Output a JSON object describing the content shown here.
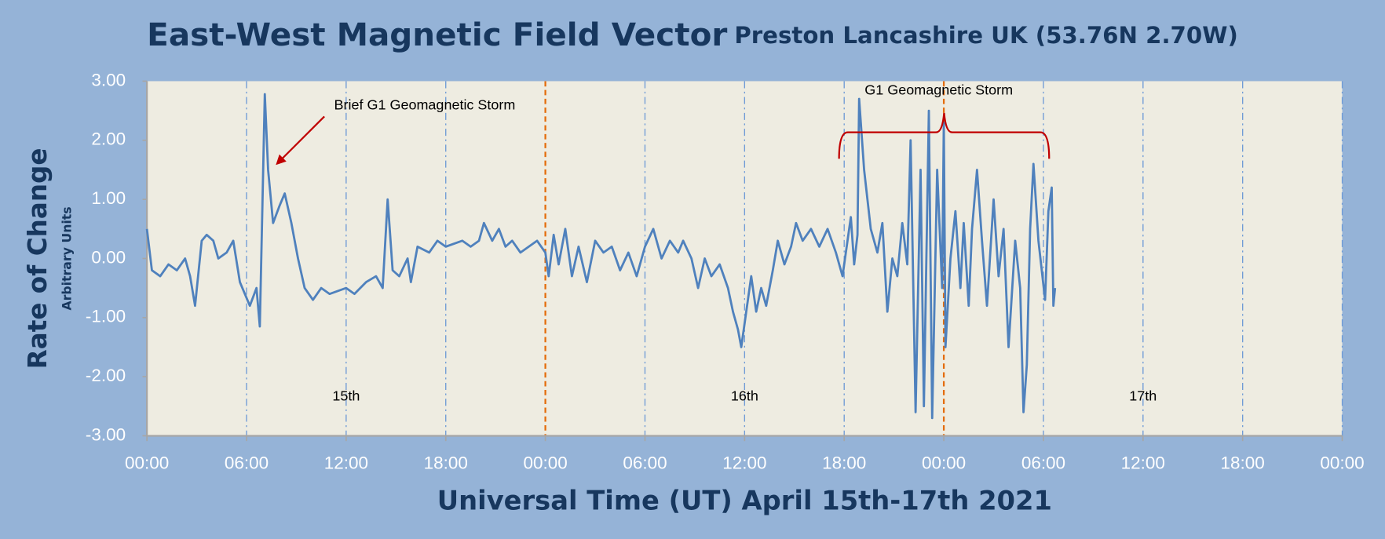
{
  "chart_data": {
    "type": "line",
    "title": "East-West Magnetic Field Vector",
    "subtitle": "Preston Lancashire UK (53.76N 2.70W)",
    "x_label": "Universal Time (UT) April 15th-17th 2021",
    "y_label": "Rate of Change",
    "y_sublabel": "Arbitrary Units",
    "annotations": [
      "Brief G1 Geomagnetic Storm",
      "G1 Geomagnetic Storm"
    ],
    "day_labels": [
      "15th",
      "16th",
      "17th"
    ],
    "color": "#4f81bd",
    "xlim": [
      0,
      72
    ],
    "xticks": [
      {
        "value": 0,
        "label": "00:00"
      },
      {
        "value": 6,
        "label": "06:00"
      },
      {
        "value": 12,
        "label": "12:00"
      },
      {
        "value": 18,
        "label": "18:00"
      },
      {
        "value": 24,
        "label": "00:00"
      },
      {
        "value": 30,
        "label": "06:00"
      },
      {
        "value": 36,
        "label": "12:00"
      },
      {
        "value": 42,
        "label": "18:00"
      },
      {
        "value": 48,
        "label": "00:00"
      },
      {
        "value": 54,
        "label": "06:00"
      },
      {
        "value": 60,
        "label": "12:00"
      },
      {
        "value": 66,
        "label": "18:00"
      },
      {
        "value": 72,
        "label": "00:00"
      }
    ],
    "ylim": [
      -3,
      3
    ],
    "yticks": [
      {
        "value": 3,
        "label": "3.00"
      },
      {
        "value": 2,
        "label": "2.00"
      },
      {
        "value": 1,
        "label": "1.00"
      },
      {
        "value": 0,
        "label": "0.00"
      },
      {
        "value": -1,
        "label": "-1.00"
      },
      {
        "value": -2,
        "label": "-2.00"
      },
      {
        "value": -3,
        "label": "-3.00"
      }
    ],
    "grid": true,
    "x": [
      0,
      0.3,
      0.8,
      1.3,
      1.8,
      2.3,
      2.6,
      2.9,
      3.3,
      3.6,
      4,
      4.3,
      4.8,
      5.2,
      5.6,
      6.2,
      6.6,
      6.8,
      7.1,
      7.3,
      7.6,
      8,
      8.3,
      8.7,
      9.1,
      9.5,
      10,
      10.5,
      11,
      12,
      12.5,
      13.2,
      13.8,
      14.2,
      14.5,
      14.8,
      15.2,
      15.7,
      15.9,
      16.3,
      17,
      17.5,
      18,
      19,
      19.5,
      20,
      20.3,
      20.8,
      21.2,
      21.6,
      22,
      22.5,
      23,
      23.5,
      24,
      24.2,
      24.5,
      24.8,
      25.2,
      25.6,
      26,
      26.5,
      27,
      27.5,
      28,
      28.5,
      29,
      29.5,
      30,
      30.5,
      31,
      31.5,
      32,
      32.3,
      32.8,
      33.2,
      33.6,
      34,
      34.5,
      35,
      35.3,
      35.6,
      35.8,
      36.1,
      36.4,
      36.7,
      37,
      37.3,
      37.7,
      38,
      38.4,
      38.8,
      39.1,
      39.5,
      40,
      40.5,
      41,
      41.5,
      41.9,
      42.2,
      42.4,
      42.6,
      42.8,
      42.9,
      43.2,
      43.6,
      44,
      44.3,
      44.6,
      44.9,
      45.2,
      45.5,
      45.8,
      46,
      46.3,
      46.6,
      46.8,
      47.1,
      47.3,
      47.6,
      47.9,
      48,
      48.1,
      48.4,
      48.7,
      49,
      49.2,
      49.5,
      49.7,
      50,
      50.3,
      50.6,
      51,
      51.3,
      51.6,
      51.9,
      52.3,
      52.6,
      52.8,
      53,
      53.2,
      53.4,
      53.7,
      54.1,
      54.3,
      54.5,
      54.6,
      54.7
    ],
    "values": [
      0.5,
      -0.2,
      -0.3,
      -0.1,
      -0.2,
      0,
      -0.3,
      -0.8,
      0.3,
      0.4,
      0.3,
      0,
      0.1,
      0.3,
      -0.4,
      -0.8,
      -0.5,
      -1.15,
      2.78,
      1.5,
      0.6,
      0.9,
      1.1,
      0.6,
      0,
      -0.5,
      -0.7,
      -0.5,
      -0.6,
      -0.5,
      -0.6,
      -0.4,
      -0.3,
      -0.5,
      1,
      -0.2,
      -0.3,
      0,
      -0.4,
      0.2,
      0.1,
      0.3,
      0.2,
      0.3,
      0.2,
      0.3,
      0.6,
      0.3,
      0.5,
      0.2,
      0.3,
      0.1,
      0.2,
      0.3,
      0.1,
      -0.3,
      0.4,
      -0.1,
      0.5,
      -0.3,
      0.2,
      -0.4,
      0.3,
      0.1,
      0.2,
      -0.2,
      0.1,
      -0.3,
      0.2,
      0.5,
      0,
      0.3,
      0.1,
      0.3,
      0,
      -0.5,
      0,
      -0.3,
      -0.1,
      -0.5,
      -0.9,
      -1.2,
      -1.5,
      -0.9,
      -0.3,
      -0.9,
      -0.5,
      -0.8,
      -0.2,
      0.3,
      -0.1,
      0.2,
      0.6,
      0.3,
      0.5,
      0.2,
      0.5,
      0.1,
      -0.3,
      0.3,
      0.7,
      -0.1,
      0.4,
      2.7,
      1.5,
      0.5,
      0.1,
      0.6,
      -0.9,
      0,
      -0.3,
      0.6,
      -0.1,
      2,
      -2.6,
      1.5,
      -2.5,
      2.5,
      -2.7,
      1.5,
      -0.5,
      2.3,
      -1.5,
      0,
      0.8,
      -0.5,
      0.6,
      -0.8,
      0.5,
      1.5,
      0.3,
      -0.8,
      1,
      -0.3,
      0.5,
      -1.5,
      0.3,
      -0.5,
      -2.6,
      -1.8,
      0.5,
      1.6,
      0.3,
      -0.7,
      0.8,
      1.2,
      -0.8,
      -0.5
    ]
  }
}
